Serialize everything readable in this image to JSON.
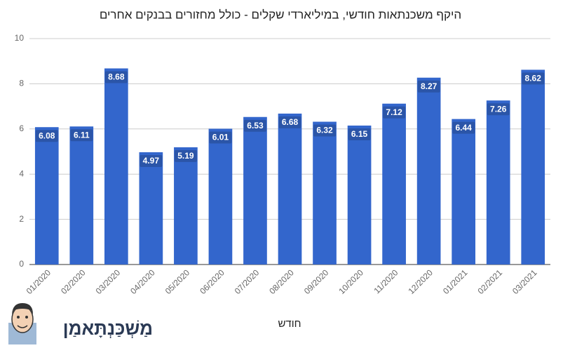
{
  "chart_data": {
    "type": "bar",
    "title": "היקף משכנתאות חודשי, במיליארדי שקלים - כולל מחזורים בבנקים אחרים",
    "x_label": "חודש",
    "logo": "מַשְׁכַּנְתָּאמַן",
    "categories": [
      "01/2020",
      "02/2020",
      "03/2020",
      "04/2020",
      "05/2020",
      "06/2020",
      "07/2020",
      "08/2020",
      "09/2020",
      "10/2020",
      "11/2020",
      "12/2020",
      "01/2021",
      "02/2021",
      "03/2021"
    ],
    "values": [
      6.08,
      6.11,
      8.68,
      4.97,
      5.19,
      6.01,
      6.53,
      6.68,
      6.32,
      6.15,
      7.12,
      8.27,
      6.44,
      7.26,
      8.62
    ],
    "color": "#3366cc",
    "ylim": [
      0,
      10
    ],
    "yticks": [
      0,
      2,
      4,
      6,
      8,
      10
    ],
    "grid": true
  }
}
